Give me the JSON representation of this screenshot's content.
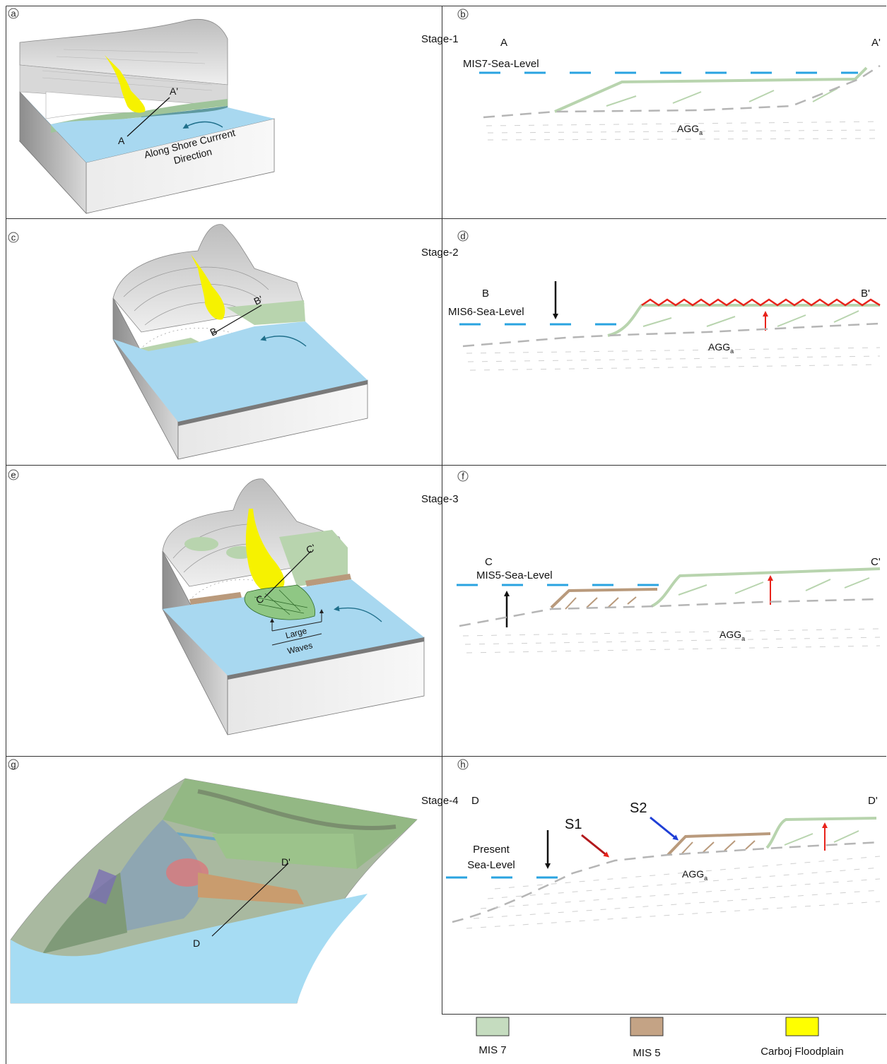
{
  "panels": {
    "a": {
      "tag": "a",
      "sec_start": "A",
      "sec_end": "A'",
      "current_line1": "Along Shore Currrent",
      "current_line2": "Direction"
    },
    "b": {
      "tag": "b",
      "stage": "Stage-1",
      "sec_start": "A",
      "sec_end": "A'",
      "sea_level": "MIS7-Sea-Level",
      "unit_main": "AGG",
      "unit_sub": "a"
    },
    "c": {
      "tag": "c",
      "sec_start": "B",
      "sec_end": "B'"
    },
    "d": {
      "tag": "d",
      "stage": "Stage-2",
      "sec_start": "B",
      "sec_end": "B'",
      "sea_level": "MIS6-Sea-Level",
      "unit_main": "AGG",
      "unit_sub": "a"
    },
    "e": {
      "tag": "e",
      "sec_start": "C",
      "sec_end": "C'",
      "waves_line1": "Large",
      "waves_line2": "Waves"
    },
    "f": {
      "tag": "f",
      "stage": "Stage-3",
      "sec_start": "C",
      "sec_end": "C'",
      "sea_level": "MIS5-Sea-Level",
      "unit_main": "AGG",
      "unit_sub": "a"
    },
    "g": {
      "tag": "g",
      "sec_start": "D",
      "sec_end": "D'"
    },
    "h": {
      "tag": "h",
      "stage": "Stage-4",
      "sec_start": "D",
      "sec_end": "D'",
      "sea_level_line1": "Present",
      "sea_level_line2": "Sea-Level",
      "unit_main": "AGG",
      "unit_sub": "a",
      "surface_1": "S1",
      "surface_2": "S2"
    }
  },
  "legend": [
    {
      "label": "MIS 7",
      "color": "#c5dcbf"
    },
    {
      "label": "MIS 5",
      "color": "#c4a385"
    },
    {
      "label": "Carboj Floodplain",
      "color": "#ffff00"
    }
  ],
  "colors": {
    "sea": "#a8d8f0",
    "sea_level_dash": "#29a3e0",
    "mis7_terrace": "#b8d4ae",
    "mis5_terrace": "#b99a7c",
    "floodplain": "#f6f200",
    "erosion": "#e8231b",
    "uplift_arrow": "#e8231b",
    "s1_arrow": "#b3191c",
    "s2_arrow": "#1f3fd6",
    "base_dash": "#b5b5b5"
  }
}
